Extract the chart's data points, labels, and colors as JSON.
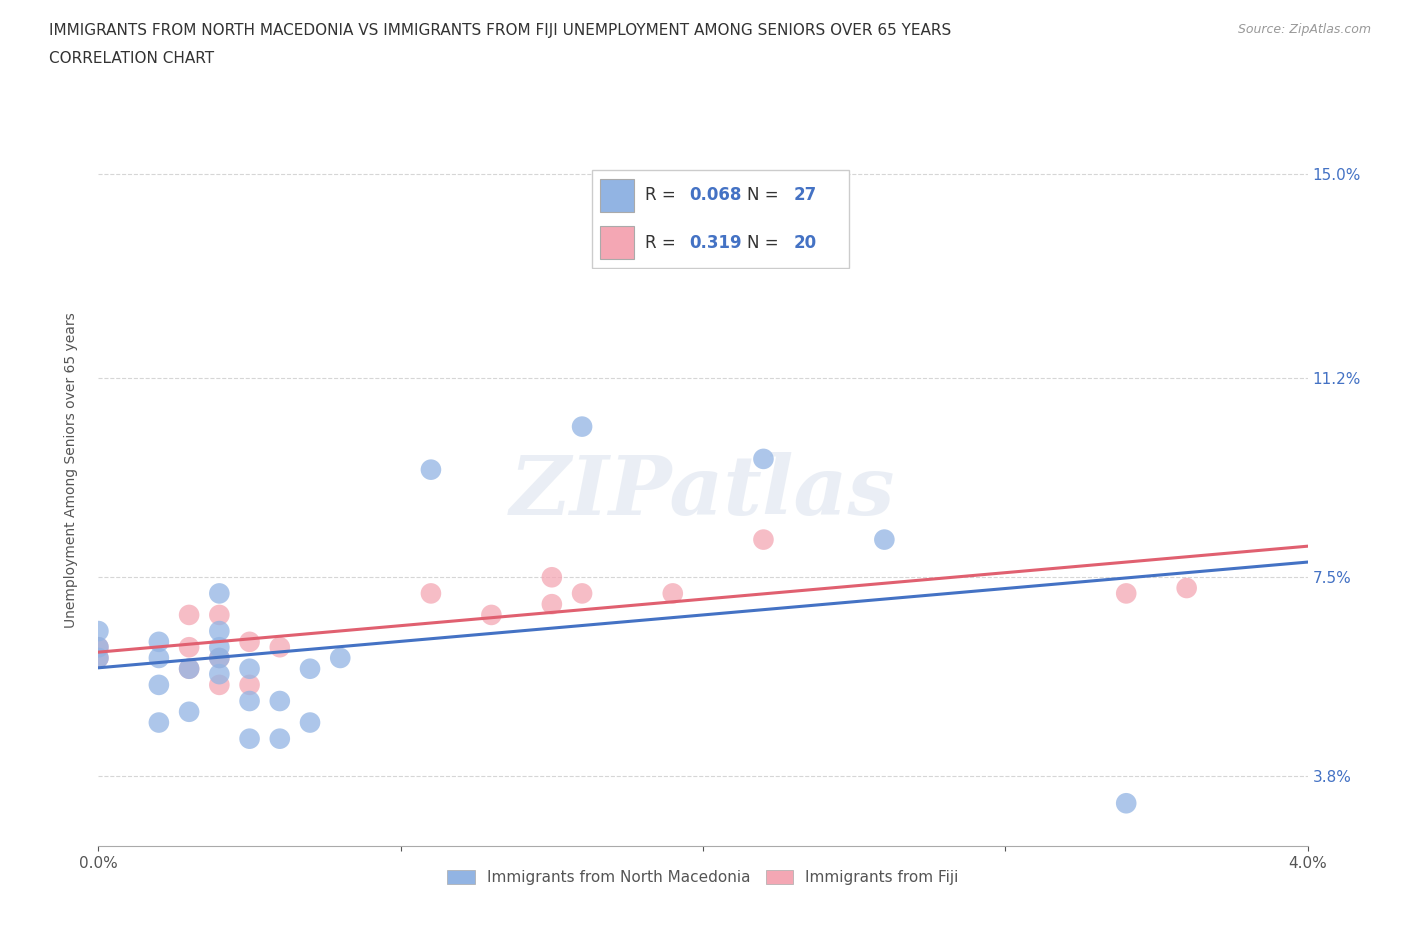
{
  "title_line1": "IMMIGRANTS FROM NORTH MACEDONIA VS IMMIGRANTS FROM FIJI UNEMPLOYMENT AMONG SENIORS OVER 65 YEARS",
  "title_line2": "CORRELATION CHART",
  "source": "Source: ZipAtlas.com",
  "ylabel": "Unemployment Among Seniors over 65 years",
  "xlim": [
    0.0,
    0.04
  ],
  "ylim": [
    0.025,
    0.165
  ],
  "yticks": [
    0.038,
    0.075,
    0.112,
    0.15
  ],
  "ytick_labels": [
    "3.8%",
    "7.5%",
    "11.2%",
    "15.0%"
  ],
  "xticks": [
    0.0,
    0.01,
    0.02,
    0.03,
    0.04
  ],
  "xtick_labels": [
    "0.0%",
    "",
    "",
    "",
    "4.0%"
  ],
  "legend_label1": "Immigrants from North Macedonia",
  "legend_label2": "Immigrants from Fiji",
  "R1": 0.068,
  "N1": 27,
  "R2": 0.319,
  "N2": 20,
  "color1": "#92b4e3",
  "color2": "#f4a7b4",
  "line_color1": "#4472c4",
  "line_color2": "#e06070",
  "watermark": "ZIPatlas",
  "mac_x": [
    0.0,
    0.0,
    0.0,
    0.002,
    0.002,
    0.002,
    0.002,
    0.003,
    0.003,
    0.004,
    0.004,
    0.004,
    0.004,
    0.004,
    0.005,
    0.005,
    0.005,
    0.006,
    0.006,
    0.007,
    0.007,
    0.008,
    0.011,
    0.016,
    0.022,
    0.026,
    0.034
  ],
  "mac_y": [
    0.06,
    0.062,
    0.065,
    0.048,
    0.055,
    0.06,
    0.063,
    0.05,
    0.058,
    0.057,
    0.06,
    0.062,
    0.065,
    0.072,
    0.045,
    0.052,
    0.058,
    0.045,
    0.052,
    0.048,
    0.058,
    0.06,
    0.095,
    0.103,
    0.097,
    0.082,
    0.033
  ],
  "fiji_x": [
    0.0,
    0.0,
    0.003,
    0.003,
    0.003,
    0.004,
    0.004,
    0.004,
    0.005,
    0.005,
    0.006,
    0.011,
    0.013,
    0.015,
    0.015,
    0.016,
    0.019,
    0.022,
    0.034,
    0.036
  ],
  "fiji_y": [
    0.06,
    0.062,
    0.058,
    0.062,
    0.068,
    0.055,
    0.06,
    0.068,
    0.055,
    0.063,
    0.062,
    0.072,
    0.068,
    0.07,
    0.075,
    0.072,
    0.072,
    0.082,
    0.072,
    0.073
  ],
  "title_fontsize": 11,
  "axis_label_fontsize": 10,
  "tick_fontsize": 11,
  "legend_fontsize": 12
}
